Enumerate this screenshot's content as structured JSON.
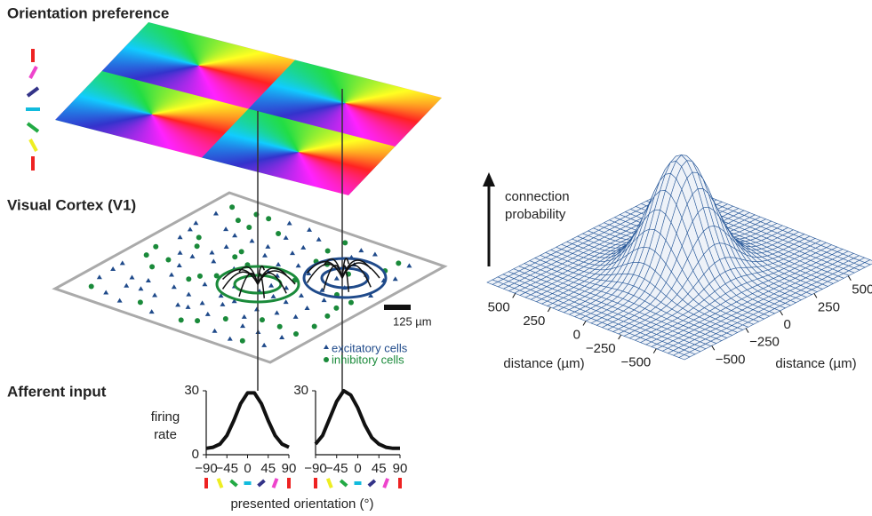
{
  "titles": {
    "orientation": "Orientation preference",
    "cortex": "Visual Cortex (V1)",
    "afferent": "Afferent input"
  },
  "scale_bar": "125 µm",
  "legend": [
    "excitatory cells",
    "inhibitory cells"
  ],
  "tuning": {
    "y_label": [
      "firing",
      "rate"
    ],
    "x_label": "presented orientation (°)",
    "ylim": [
      0,
      30
    ],
    "xlim": [
      -90,
      90
    ],
    "xticks": [
      {
        "value": -90,
        "label": "−90"
      },
      {
        "value": -45,
        "label": "−45"
      },
      0,
      45,
      90
    ],
    "x": [
      -90,
      -75,
      -60,
      -45,
      -30,
      -15,
      0,
      15,
      30,
      45,
      60,
      75,
      90
    ],
    "plots": [
      {
        "yticks": [
          0,
          30
        ],
        "values": [
          3,
          3.5,
          5,
          9,
          16,
          24,
          29,
          29,
          24,
          16,
          9,
          5,
          3.5
        ]
      },
      {
        "yticks": [
          30
        ],
        "values": [
          5,
          9,
          17,
          25,
          30,
          28,
          22,
          14,
          8,
          5,
          3.5,
          3,
          3
        ]
      }
    ]
  },
  "surface": {
    "z_label": [
      "connection",
      "probability"
    ],
    "x_label": "distance (µm)",
    "y_label": "distance (µm)",
    "xlim": [
      -700,
      700
    ],
    "ylim": [
      -700,
      700
    ],
    "xticks": [
      500,
      250,
      0,
      {
        "value": -250,
        "label": "−250"
      },
      {
        "value": -500,
        "label": "−500"
      }
    ],
    "yticks": [
      500,
      250,
      0,
      {
        "value": -250,
        "label": "−250"
      },
      {
        "value": -500,
        "label": "−500"
      }
    ]
  }
}
